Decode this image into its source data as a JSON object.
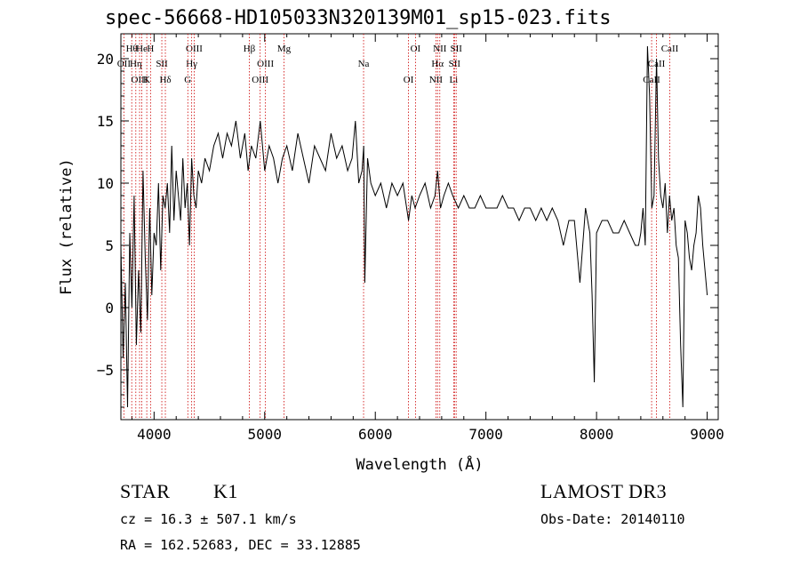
{
  "chart_data": {
    "type": "line",
    "title": "spec-56668-HD105033N320139M01_sp15-023.fits",
    "xlabel": "Wavelength (Å)",
    "ylabel": "Flux (relative)",
    "xlim": [
      3700,
      9100
    ],
    "ylim": [
      -9,
      22
    ],
    "xticks": [
      4000,
      5000,
      6000,
      7000,
      8000,
      9000
    ],
    "yticks": [
      -5,
      0,
      5,
      10,
      15,
      20
    ],
    "line_color": "#000000",
    "marker_color": "#cc0000",
    "series": [
      {
        "name": "spectrum",
        "x": [
          3700,
          3720,
          3740,
          3760,
          3780,
          3800,
          3820,
          3840,
          3860,
          3880,
          3900,
          3920,
          3940,
          3960,
          3980,
          4000,
          4020,
          4040,
          4060,
          4080,
          4100,
          4120,
          4140,
          4160,
          4180,
          4200,
          4220,
          4240,
          4260,
          4280,
          4300,
          4320,
          4340,
          4360,
          4380,
          4400,
          4430,
          4460,
          4500,
          4540,
          4580,
          4620,
          4660,
          4700,
          4740,
          4780,
          4820,
          4850,
          4880,
          4920,
          4960,
          5000,
          5040,
          5080,
          5120,
          5160,
          5200,
          5250,
          5300,
          5350,
          5400,
          5450,
          5500,
          5550,
          5600,
          5650,
          5700,
          5750,
          5790,
          5820,
          5850,
          5880,
          5895,
          5905,
          5930,
          5960,
          6000,
          6050,
          6100,
          6150,
          6200,
          6250,
          6300,
          6330,
          6360,
          6400,
          6450,
          6500,
          6540,
          6563,
          6590,
          6620,
          6660,
          6700,
          6750,
          6800,
          6850,
          6900,
          6950,
          7000,
          7050,
          7100,
          7150,
          7200,
          7250,
          7300,
          7350,
          7400,
          7450,
          7500,
          7550,
          7600,
          7650,
          7700,
          7750,
          7800,
          7850,
          7900,
          7940,
          7960,
          7980,
          8000,
          8050,
          8100,
          8150,
          8200,
          8250,
          8300,
          8350,
          8380,
          8400,
          8420,
          8440,
          8460,
          8480,
          8500,
          8520,
          8542,
          8560,
          8580,
          8600,
          8620,
          8640,
          8660,
          8680,
          8700,
          8720,
          8740,
          8760,
          8780,
          8800,
          8820,
          8840,
          8860,
          8880,
          8900,
          8920,
          8940,
          8960,
          8980,
          9000
        ],
        "y": [
          5,
          -4,
          2,
          -8,
          6,
          0,
          9,
          -3,
          3,
          -2,
          11,
          4,
          -1,
          8,
          1,
          6,
          5,
          10,
          3,
          9,
          8,
          10,
          6,
          13,
          7,
          11,
          9,
          7,
          12,
          8,
          10,
          5,
          12,
          9,
          8,
          11,
          10,
          12,
          11,
          13,
          14,
          12,
          14,
          13,
          15,
          12,
          14,
          11,
          13,
          12,
          15,
          11,
          13,
          12,
          10,
          12,
          13,
          11,
          14,
          12,
          10,
          13,
          12,
          11,
          14,
          12,
          13,
          11,
          12,
          15,
          10,
          11,
          13,
          2,
          12,
          10,
          9,
          10,
          8,
          10,
          9,
          10,
          7,
          9,
          8,
          9,
          10,
          8,
          9,
          11,
          8,
          9,
          10,
          9,
          8,
          9,
          8,
          8,
          9,
          8,
          8,
          8,
          9,
          8,
          8,
          7,
          8,
          8,
          7,
          8,
          7,
          8,
          7,
          5,
          7,
          7,
          2,
          8,
          6,
          1,
          -6,
          6,
          7,
          7,
          6,
          6,
          7,
          6,
          5,
          5,
          6,
          8,
          5,
          21,
          17,
          8,
          9,
          20,
          12,
          9,
          8,
          10,
          6,
          9,
          7,
          8,
          5,
          4,
          -3,
          -8,
          7,
          6,
          4,
          3,
          5,
          6,
          9,
          8,
          5,
          3,
          1
        ]
      }
    ],
    "lines": [
      {
        "label": "Hθ",
        "x": 3798
      },
      {
        "label": "OII",
        "x": 3727
      },
      {
        "label": "OIII",
        "x": 3869
      },
      {
        "label": "He",
        "x": 3889
      },
      {
        "label": "Hη",
        "x": 3835
      },
      {
        "label": "K",
        "x": 3934
      },
      {
        "label": "H",
        "x": 3968
      },
      {
        "label": "SII",
        "x": 4070
      },
      {
        "label": "Hδ",
        "x": 4102
      },
      {
        "label": "OIII",
        "x": 4363
      },
      {
        "label": "Hγ",
        "x": 4340
      },
      {
        "label": "G",
        "x": 4305
      },
      {
        "label": "Hβ",
        "x": 4861
      },
      {
        "label": "OIII",
        "x": 5007
      },
      {
        "label": "OIII",
        "x": 4959
      },
      {
        "label": "Mg",
        "x": 5175
      },
      {
        "label": "Na",
        "x": 5894
      },
      {
        "label": "OI",
        "x": 6300
      },
      {
        "label": "OI",
        "x": 6363
      },
      {
        "label": "Hα",
        "x": 6563
      },
      {
        "label": "NII",
        "x": 6548
      },
      {
        "label": "NII",
        "x": 6583
      },
      {
        "label": "SII",
        "x": 6716
      },
      {
        "label": "Li",
        "x": 6708
      },
      {
        "label": "SII",
        "x": 6731
      },
      {
        "label": "CaII",
        "x": 8542
      },
      {
        "label": "CaII",
        "x": 8498
      },
      {
        "label": "CaII",
        "x": 8662
      }
    ]
  },
  "info": {
    "class": "STAR",
    "subclass": "K1",
    "survey": "LAMOST DR3",
    "cz": "cz = 16.3 ± 507.1 km/s",
    "obs_date": "Obs-Date: 20140110",
    "coords": "RA = 162.52683, DEC =  33.12885"
  }
}
